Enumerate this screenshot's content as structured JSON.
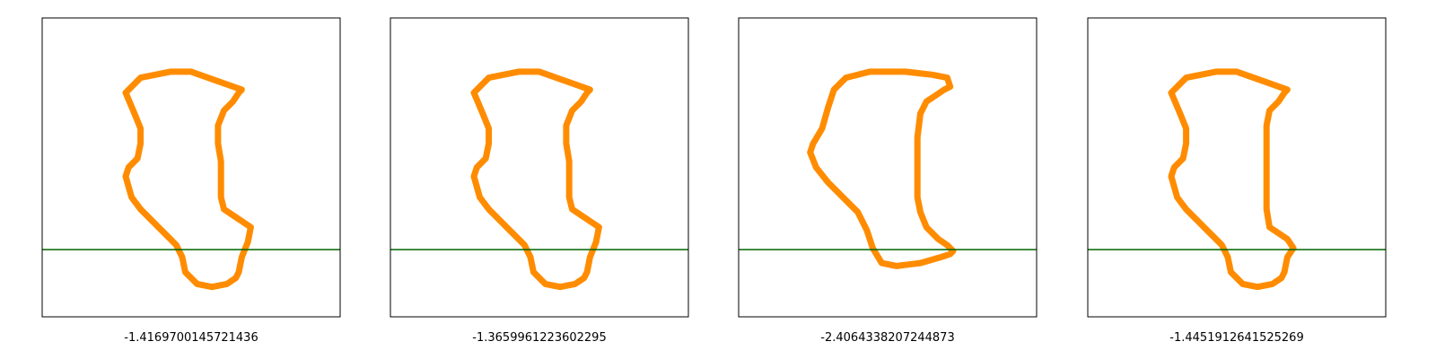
{
  "figure": {
    "background": "#ffffff",
    "frame_color": "#000000",
    "shape_color": "#ff8c00",
    "line_color": "#006400"
  },
  "chart_data": [
    {
      "type": "line",
      "label": "-1.4169700145721436",
      "xlim": [
        0,
        100
      ],
      "ylim": [
        0,
        100
      ],
      "ticks": "none",
      "horizontal_line": {
        "y": 22.5
      },
      "series": [
        {
          "closed": true,
          "x": [
            50,
            43,
            33,
            28,
            31,
            33,
            33,
            32,
            29,
            28,
            30,
            33,
            39,
            43,
            45,
            47,
            48,
            52,
            57,
            62,
            65,
            66,
            67,
            69,
            70,
            61,
            60,
            60,
            60,
            59,
            59,
            61,
            64,
            66,
            67
          ],
          "y": [
            82,
            82,
            80,
            75,
            68,
            63,
            58,
            53,
            50,
            47,
            40,
            36,
            30,
            26,
            24,
            20,
            15,
            11,
            10,
            11,
            13,
            15,
            20,
            25,
            30,
            36,
            40,
            46,
            52,
            58,
            64,
            69,
            72,
            75,
            76
          ]
        }
      ]
    },
    {
      "type": "line",
      "label": "-1.3659961223602295",
      "xlim": [
        0,
        100
      ],
      "ylim": [
        0,
        100
      ],
      "ticks": "none",
      "horizontal_line": {
        "y": 22.5
      },
      "series": [
        {
          "closed": true,
          "x": [
            50,
            43,
            33,
            28,
            31,
            33,
            33,
            32,
            29,
            28,
            30,
            33,
            39,
            43,
            45,
            47,
            48,
            52,
            57,
            62,
            65,
            66,
            67,
            69,
            70,
            61,
            60,
            60,
            60,
            59,
            59,
            61,
            64,
            66,
            67
          ],
          "y": [
            82,
            82,
            80,
            75,
            68,
            63,
            58,
            53,
            50,
            47,
            40,
            36,
            30,
            26,
            24,
            20,
            15,
            11,
            10,
            11,
            13,
            15,
            20,
            25,
            30,
            36,
            40,
            46,
            52,
            58,
            64,
            69,
            72,
            75,
            76
          ]
        }
      ]
    },
    {
      "type": "line",
      "label": "-2.4064338207244873",
      "xlim": [
        0,
        100
      ],
      "ylim": [
        0,
        100
      ],
      "ticks": "none",
      "horizontal_line": {
        "y": 22.5
      },
      "series": [
        {
          "closed": true,
          "x": [
            70,
            65,
            56,
            44,
            36,
            32,
            30,
            28,
            25,
            24,
            26,
            30,
            36,
            40,
            43,
            45,
            48,
            53,
            61,
            68,
            71,
            72,
            70,
            67,
            63,
            61,
            60,
            60,
            60,
            61,
            63,
            66,
            69,
            71
          ],
          "y": [
            80,
            81,
            82,
            82,
            80,
            76,
            70,
            63,
            58,
            55,
            50,
            45,
            39,
            35,
            29,
            23,
            18,
            17,
            18,
            20,
            21,
            22,
            24,
            26,
            30,
            35,
            40,
            50,
            60,
            68,
            72,
            74,
            76,
            77
          ]
        }
      ]
    },
    {
      "type": "line",
      "label": "-1.4451912641525269",
      "xlim": [
        0,
        100
      ],
      "ylim": [
        0,
        100
      ],
      "ticks": "none",
      "horizontal_line": {
        "y": 22.5
      },
      "series": [
        {
          "closed": true,
          "x": [
            50,
            43,
            33,
            28,
            31,
            33,
            33,
            32,
            29,
            28,
            30,
            33,
            39,
            43,
            45,
            47,
            48,
            52,
            57,
            62,
            65,
            66,
            67,
            69,
            67,
            61,
            60,
            60,
            60,
            60,
            60,
            61,
            64,
            66,
            67
          ],
          "y": [
            82,
            82,
            80,
            75,
            68,
            63,
            58,
            53,
            50,
            47,
            40,
            36,
            30,
            26,
            24,
            20,
            15,
            11,
            10,
            11,
            13,
            15,
            20,
            23,
            26,
            30,
            36,
            46,
            52,
            58,
            64,
            69,
            72,
            75,
            76
          ]
        }
      ]
    }
  ]
}
